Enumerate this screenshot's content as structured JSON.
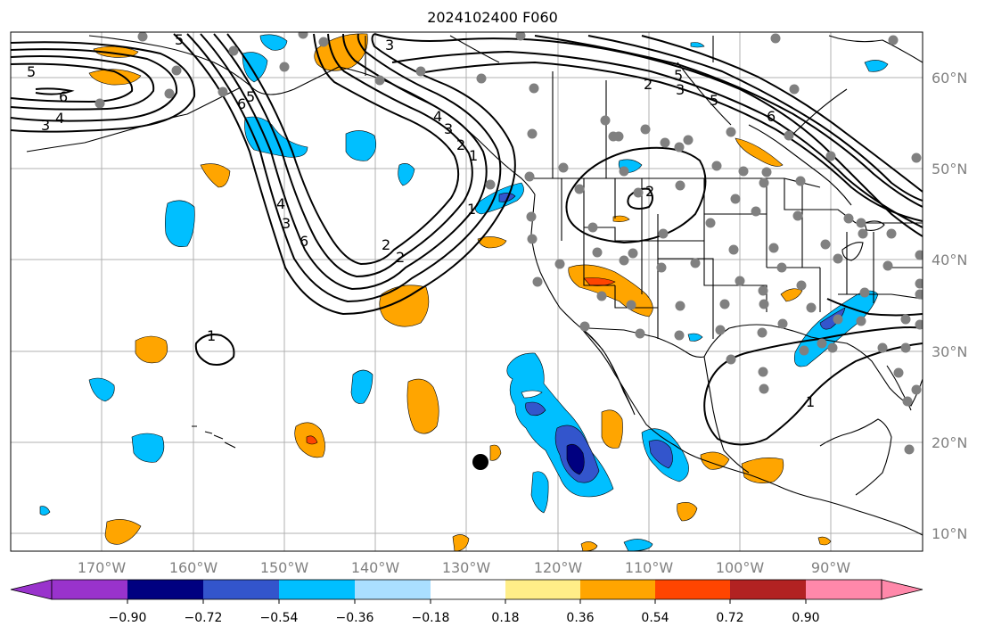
{
  "title": "2024102400 F060",
  "lat_labels": [
    "60°N",
    "50°N",
    "40°N",
    "30°N",
    "20°N",
    "10°N"
  ],
  "lon_labels": [
    "170°W",
    "160°W",
    "150°W",
    "140°W",
    "130°W",
    "120°W",
    "110°W",
    "100°W",
    "90°W"
  ],
  "colorbar": {
    "ticks": [
      "−0.90",
      "−0.72",
      "−0.54",
      "−0.36",
      "−0.18",
      "0.18",
      "0.36",
      "0.54",
      "0.72",
      "0.90"
    ],
    "colors": [
      "#9933cc",
      "#000080",
      "#3355cc",
      "#00bfff",
      "#aadfff",
      "#ffffff",
      "#ffee88",
      "#ffa500",
      "#ff4500",
      "#b22222",
      "#ff88aa"
    ]
  },
  "contour_labels": [
    "5",
    "6",
    "4",
    "3",
    "5",
    "3",
    "6",
    "5",
    "4",
    "3",
    "2",
    "1",
    "4",
    "3",
    "2",
    "1",
    "2",
    "5",
    "6",
    "5",
    "3",
    "2",
    "6",
    "2",
    "1",
    "1"
  ],
  "colors": {
    "orange": "#ffa500",
    "red": "#ff4500",
    "light_blue": "#00bfff",
    "mid_blue": "#3355cc",
    "dark_blue": "#000080",
    "station_gray": "#808080"
  }
}
